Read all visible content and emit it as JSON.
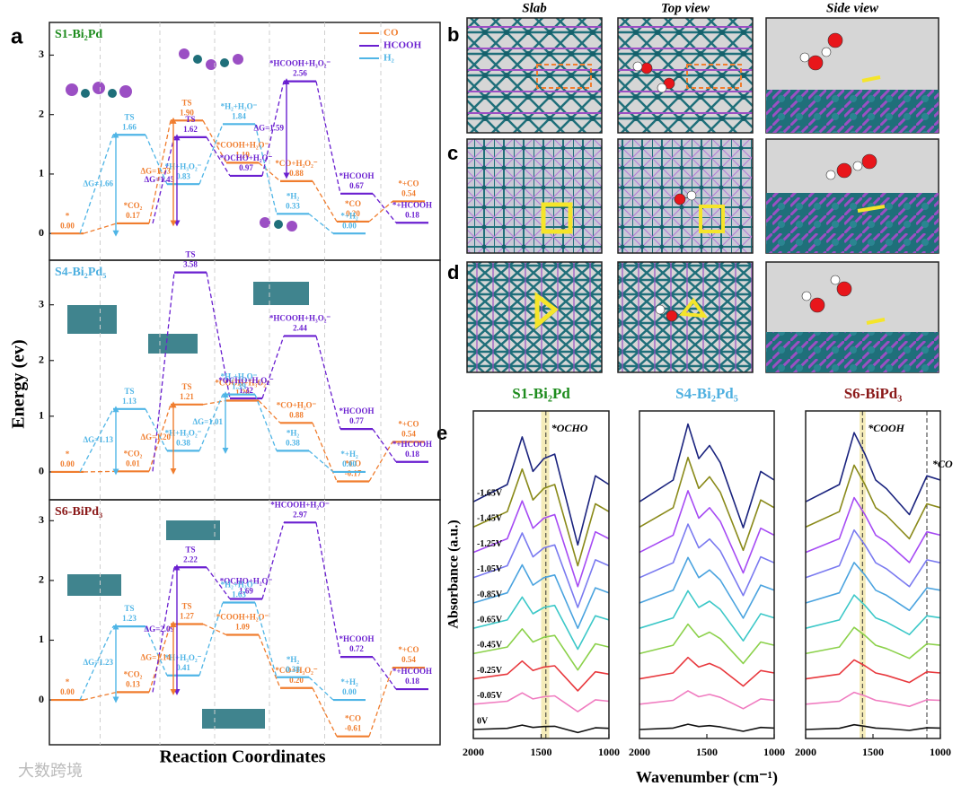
{
  "figure": {
    "panel_labels": [
      "a",
      "b",
      "c",
      "d",
      "e"
    ],
    "watermark": "大数跨境"
  },
  "panel_a": {
    "xlabel": "Reaction Coordinates",
    "ylabel": "Energy (ev)"
  },
  "panel_bcd": {
    "columns": [
      "Slab",
      "Top view",
      "Side view"
    ]
  },
  "panel_e": {
    "xlabel": "Wavenumber (cm⁻¹)",
    "ylabel": "Absorbance (a.u.)"
  },
  "chart_data": [
    {
      "type": "energy_profile",
      "title": "S1-Bi₂Pd",
      "title_color": "#1e8c1e",
      "ylim": [
        -0.45,
        3.55
      ],
      "yticks": [
        0,
        1,
        2,
        3
      ],
      "legend": "upper right",
      "series": [
        {
          "name": "CO",
          "color": "#f07d2e",
          "states": [
            "*",
            "*CO₂",
            "TS",
            "*COOH+H₂O⁻",
            "*CO+H₃O₂⁻",
            "*CO",
            "*+CO"
          ],
          "x": [
            0,
            1,
            2,
            3,
            4,
            5,
            6
          ],
          "values": [
            0,
            0.17,
            1.9,
            1.19,
            0.88,
            0.2,
            0.54
          ],
          "value_labels": [
            "0.00",
            "0.17",
            "1.90",
            "1.19",
            "0.88",
            "0.20",
            "0.54"
          ]
        },
        {
          "name": "HCOOH",
          "color": "#6a1fd0",
          "states": [
            null,
            "TS",
            "*OCHO+H₂O⁻",
            "*HCOOH+H₃O₂⁻",
            "*HCOOH",
            "*+HCOOH"
          ],
          "x": [
            1,
            2,
            3,
            4,
            5,
            6
          ],
          "values": [
            0.17,
            1.62,
            0.97,
            2.56,
            0.67,
            0.18
          ],
          "value_labels": [
            null,
            "1.62",
            "0.97",
            "2.56",
            "0.67",
            "0.18"
          ]
        },
        {
          "name": "H₂",
          "color": "#4fb5e6",
          "states": [
            null,
            "TS",
            "*H+H₃O₂⁻",
            "*H₂+H₂O⁻",
            "*H₂",
            "*+H₂"
          ],
          "x": [
            0,
            1,
            2,
            3,
            4,
            5
          ],
          "values": [
            0,
            1.66,
            0.83,
            1.84,
            0.33,
            0
          ],
          "value_labels": [
            null,
            "1.66",
            "0.83",
            "1.84",
            "0.33",
            "0.00"
          ]
        }
      ],
      "annotations": [
        {
          "text": "ΔG=1.66",
          "series": 2,
          "from": 0,
          "to": 1
        },
        {
          "text": "ΔG=1.45",
          "series": 1,
          "from": 0,
          "to": 1
        },
        {
          "text": "ΔG=1.73",
          "series": 0,
          "from": 1,
          "to": 2
        },
        {
          "text": "ΔG=1.59",
          "series": 1,
          "from": 2,
          "to": 3
        }
      ]
    },
    {
      "type": "energy_profile",
      "title": "S4-Bi₂Pd₅",
      "title_color": "#4fb0e0",
      "ylim": [
        -0.5,
        3.8
      ],
      "yticks": [
        0,
        1,
        2,
        3
      ],
      "series": [
        {
          "name": "CO",
          "color": "#f07d2e",
          "states": [
            "*",
            "*CO₂",
            "TS",
            "*COOH+H₃O₂⁻",
            "*CO+H₂O⁻",
            "*CO",
            "*+CO"
          ],
          "x": [
            0,
            1,
            2,
            3,
            4,
            5,
            6
          ],
          "values": [
            0,
            0.01,
            1.21,
            1.28,
            0.88,
            -0.17,
            0.54
          ],
          "value_labels": [
            "0.00",
            "0.01",
            "1.21",
            "1.28",
            "0.88",
            "-0.17",
            "0.54"
          ]
        },
        {
          "name": "HCOOH",
          "color": "#6a1fd0",
          "states": [
            null,
            "TS",
            "*OCHO+H₃O₂⁻",
            "*HCOOH+H₃O₂⁻",
            "*HCOOH",
            "*+HCOOH"
          ],
          "x": [
            1,
            2,
            3,
            4,
            5,
            6
          ],
          "values": [
            0.01,
            3.58,
            1.32,
            2.44,
            0.77,
            0.18
          ],
          "value_labels": [
            null,
            "3.58",
            "1.32",
            "2.44",
            "0.77",
            "0.18"
          ]
        },
        {
          "name": "H₂",
          "color": "#4fb5e6",
          "states": [
            null,
            "TS",
            "*H+H₃O₂⁻",
            "*H₂+H₂O⁻",
            "*H₂",
            "*+H₂"
          ],
          "x": [
            0,
            1,
            2,
            3,
            4,
            5
          ],
          "values": [
            0,
            1.13,
            0.38,
            1.39,
            0.38,
            0
          ],
          "value_labels": [
            null,
            "1.13",
            "0.38",
            "1.39",
            "0.38",
            "0.00"
          ]
        }
      ],
      "annotations": [
        {
          "text": "ΔG=1.13",
          "series": 2,
          "from": 0,
          "to": 1
        },
        {
          "text": "ΔG=1.20",
          "series": 0,
          "from": 1,
          "to": 2
        },
        {
          "text": "ΔG=1.01",
          "series": 2,
          "from": 2,
          "to": 3
        }
      ]
    },
    {
      "type": "energy_profile",
      "title": "S6-BiPd₃",
      "title_color": "#8b1a1a",
      "ylim": [
        -0.75,
        3.35
      ],
      "yticks": [
        0,
        1,
        2,
        3
      ],
      "series": [
        {
          "name": "CO",
          "color": "#f07d2e",
          "states": [
            "*",
            "*CO₂",
            "TS",
            "*COOH+H₂O⁻",
            "*CO+H₃O₂⁻",
            "*CO",
            "*+CO"
          ],
          "x": [
            0,
            1,
            2,
            3,
            4,
            5,
            6
          ],
          "values": [
            0,
            0.13,
            1.27,
            1.09,
            0.2,
            -0.61,
            0.54
          ],
          "value_labels": [
            "0.00",
            "0.13",
            "1.27",
            "1.09",
            "0.20",
            "-0.61",
            "0.54"
          ]
        },
        {
          "name": "HCOOH",
          "color": "#6a1fd0",
          "states": [
            null,
            "TS",
            "*OCHO+H₂O⁻",
            "*HCOOH+H₂O⁻",
            "*HCOOH",
            "*+HCOOH"
          ],
          "x": [
            1,
            2,
            3,
            4,
            5,
            6
          ],
          "values": [
            0.13,
            2.22,
            1.69,
            2.97,
            0.72,
            0.18
          ],
          "value_labels": [
            null,
            "2.22",
            "1.69",
            "2.97",
            "0.72",
            "0.18"
          ]
        },
        {
          "name": "H₂",
          "color": "#4fb5e6",
          "states": [
            null,
            "TS",
            "*H+H₃O₂⁻",
            "*H₂+H₂O⁻",
            "*H₂",
            "*+H₂"
          ],
          "x": [
            0,
            1,
            2,
            3,
            4,
            5
          ],
          "values": [
            0,
            1.23,
            0.41,
            1.63,
            0.38,
            0
          ],
          "value_labels": [
            null,
            "1.23",
            "0.41",
            "1.63",
            "0.38",
            "0.00"
          ]
        }
      ],
      "annotations": [
        {
          "text": "ΔG=1.23",
          "series": 2,
          "from": 0,
          "to": 1
        },
        {
          "text": "ΔG=2.09",
          "series": 1,
          "from": 0,
          "to": 1
        },
        {
          "text": "ΔG=1.14",
          "series": 0,
          "from": 1,
          "to": 2
        }
      ]
    },
    {
      "type": "spectra",
      "title": "S1-Bi₂Pd",
      "title_color": "#1e8c1e",
      "xlim": [
        2000,
        1000
      ],
      "xticks": [
        2000,
        1500,
        1000
      ],
      "ylim": [
        0,
        11
      ],
      "x": [
        2000,
        1750,
        1640,
        1560,
        1480,
        1400,
        1230,
        1100,
        1000
      ],
      "bands": [
        [
          1500,
          1440
        ]
      ],
      "marker_lines": [
        {
          "x": 1465,
          "label": "*OCHO"
        }
      ],
      "series": [
        {
          "name": "0V",
          "color": "#111111",
          "values": [
            0.3,
            0.34,
            0.45,
            0.37,
            0.4,
            0.41,
            0.2,
            0.36,
            0.34
          ]
        },
        {
          "name": "-0.05V",
          "color": "#f07cc0",
          "values": [
            1.15,
            1.25,
            1.53,
            1.33,
            1.4,
            1.43,
            0.9,
            1.3,
            1.25
          ]
        },
        {
          "name": "-0.25V",
          "color": "#e8383d",
          "values": [
            2.0,
            2.16,
            2.6,
            2.28,
            2.4,
            2.44,
            1.6,
            2.24,
            2.16
          ]
        },
        {
          "name": "-0.45V",
          "color": "#8bd14a",
          "values": [
            2.85,
            3.07,
            3.68,
            3.24,
            3.4,
            3.46,
            2.3,
            3.18,
            3.07
          ]
        },
        {
          "name": "-0.65V",
          "color": "#3cc8c8",
          "values": [
            3.7,
            3.98,
            4.75,
            4.19,
            4.4,
            4.47,
            3.0,
            4.12,
            3.98
          ]
        },
        {
          "name": "-0.85V",
          "color": "#4aa3df",
          "values": [
            4.55,
            4.89,
            5.83,
            5.15,
            5.4,
            5.49,
            3.7,
            5.06,
            4.89
          ]
        },
        {
          "name": "-1.05V",
          "color": "#7a7af0",
          "values": [
            5.4,
            5.8,
            6.9,
            6.1,
            6.4,
            6.5,
            4.4,
            6.0,
            5.8
          ]
        },
        {
          "name": "-1.25V",
          "color": "#a64bf4",
          "values": [
            6.25,
            6.71,
            7.98,
            7.06,
            7.4,
            7.52,
            5.1,
            6.94,
            6.71
          ]
        },
        {
          "name": "-1.45V",
          "color": "#8a8a1a",
          "values": [
            7.1,
            7.62,
            9.05,
            8.01,
            8.4,
            8.53,
            5.8,
            7.88,
            7.62
          ]
        },
        {
          "name": "-1.65V",
          "color": "#1a237e",
          "values": [
            7.95,
            8.53,
            10.13,
            8.97,
            9.4,
            9.55,
            6.5,
            8.82,
            8.53
          ]
        }
      ]
    },
    {
      "type": "spectra",
      "title": "S4-Bi₂Pd₅",
      "title_color": "#4fb0e0",
      "xlim": [
        2000,
        1000
      ],
      "xticks": [
        2000,
        1500,
        1000
      ],
      "ylim": [
        0,
        11
      ],
      "x": [
        2000,
        1750,
        1640,
        1560,
        1480,
        1400,
        1230,
        1100,
        1000
      ],
      "series": [
        {
          "color": "#111111",
          "values": [
            0.3,
            0.35,
            0.48,
            0.4,
            0.43,
            0.39,
            0.24,
            0.37,
            0.35
          ]
        },
        {
          "color": "#f07cc0",
          "values": [
            1.15,
            1.28,
            1.6,
            1.4,
            1.48,
            1.38,
            1.0,
            1.33,
            1.28
          ]
        },
        {
          "color": "#e8383d",
          "values": [
            2.0,
            2.2,
            2.72,
            2.4,
            2.52,
            2.36,
            1.76,
            2.28,
            2.2
          ]
        },
        {
          "color": "#8bd14a",
          "values": [
            2.85,
            3.13,
            3.84,
            3.4,
            3.57,
            3.35,
            2.52,
            3.24,
            3.13
          ]
        },
        {
          "color": "#3cc8c8",
          "values": [
            3.7,
            4.05,
            4.96,
            4.4,
            4.61,
            4.33,
            3.28,
            4.19,
            4.05
          ]
        },
        {
          "color": "#4aa3df",
          "values": [
            4.55,
            4.98,
            6.08,
            5.4,
            5.66,
            5.32,
            4.04,
            5.15,
            4.98
          ]
        },
        {
          "color": "#7a7af0",
          "values": [
            5.4,
            5.9,
            7.2,
            6.4,
            6.7,
            6.3,
            4.8,
            6.1,
            5.9
          ]
        },
        {
          "color": "#a64bf4",
          "values": [
            6.25,
            6.83,
            8.32,
            7.4,
            7.75,
            7.29,
            5.56,
            7.06,
            6.83
          ]
        },
        {
          "color": "#8a8a1a",
          "values": [
            7.1,
            7.75,
            9.44,
            8.4,
            8.79,
            8.27,
            6.32,
            8.01,
            7.75
          ]
        },
        {
          "color": "#1a237e",
          "values": [
            7.95,
            8.68,
            10.56,
            9.4,
            9.84,
            9.26,
            7.08,
            8.97,
            8.68
          ]
        }
      ]
    },
    {
      "type": "spectra",
      "title": "S6-BiPd₃",
      "title_color": "#8b1a1a",
      "xlim": [
        2000,
        1000
      ],
      "xticks": [
        2000,
        1500,
        1000
      ],
      "ylim": [
        0,
        11
      ],
      "x": [
        2000,
        1750,
        1640,
        1560,
        1480,
        1400,
        1230,
        1100,
        1000
      ],
      "bands": [
        [
          1600,
          1555
        ]
      ],
      "marker_lines": [
        {
          "x": 1578,
          "label": "*COOH"
        },
        {
          "x": 1100,
          "label": "*CO"
        }
      ],
      "series": [
        {
          "color": "#111111",
          "values": [
            0.3,
            0.34,
            0.46,
            0.41,
            0.35,
            0.33,
            0.27,
            0.36,
            0.35
          ]
        },
        {
          "color": "#f07cc0",
          "values": [
            1.15,
            1.25,
            1.55,
            1.43,
            1.28,
            1.23,
            1.08,
            1.3,
            1.28
          ]
        },
        {
          "color": "#e8383d",
          "values": [
            2.0,
            2.16,
            2.64,
            2.44,
            2.2,
            2.12,
            1.88,
            2.24,
            2.2
          ]
        },
        {
          "color": "#8bd14a",
          "values": [
            2.85,
            3.07,
            3.73,
            3.46,
            3.13,
            3.02,
            2.69,
            3.18,
            3.13
          ]
        },
        {
          "color": "#3cc8c8",
          "values": [
            3.7,
            3.98,
            4.82,
            4.47,
            4.05,
            3.91,
            3.49,
            4.12,
            4.05
          ]
        },
        {
          "color": "#4aa3df",
          "values": [
            4.55,
            4.89,
            5.91,
            5.49,
            4.98,
            4.81,
            4.3,
            5.06,
            4.98
          ]
        },
        {
          "color": "#7a7af0",
          "values": [
            5.4,
            5.8,
            7.0,
            6.5,
            5.9,
            5.7,
            5.1,
            6.0,
            5.9
          ]
        },
        {
          "color": "#a64bf4",
          "values": [
            6.25,
            6.71,
            8.09,
            7.52,
            6.83,
            6.6,
            5.91,
            6.94,
            6.83
          ]
        },
        {
          "color": "#8a8a1a",
          "values": [
            7.1,
            7.62,
            9.18,
            8.53,
            7.75,
            7.49,
            6.71,
            7.88,
            7.75
          ]
        },
        {
          "color": "#1a237e",
          "values": [
            7.95,
            8.53,
            10.27,
            9.55,
            8.68,
            8.39,
            7.52,
            8.82,
            8.68
          ]
        }
      ]
    }
  ]
}
